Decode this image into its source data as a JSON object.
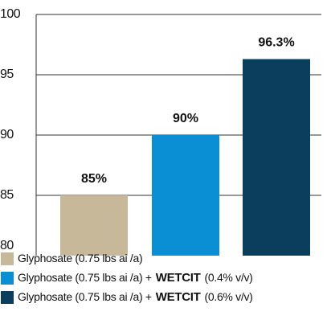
{
  "chart_data": {
    "type": "bar",
    "categories": [
      [
        "Glyphosate (0.75 lbs ai /a)"
      ],
      [
        "Glyphosate (0.75 lbs ai /a) +",
        "WETCIT",
        "(0.4% v/v)"
      ],
      [
        "Glyphosate (0.75 lbs ai /a) +",
        "WETCIT",
        "(0.6% v/v)"
      ]
    ],
    "values": [
      85,
      90,
      96.3
    ],
    "value_labels": [
      "85%",
      "90%",
      "96.3%"
    ],
    "colors": [
      "#c8b89a",
      "#0a8fd4",
      "#0b3d5c"
    ],
    "ylim": [
      80,
      100
    ],
    "yticks": [
      80,
      85,
      90,
      95,
      100
    ],
    "grid": true
  }
}
